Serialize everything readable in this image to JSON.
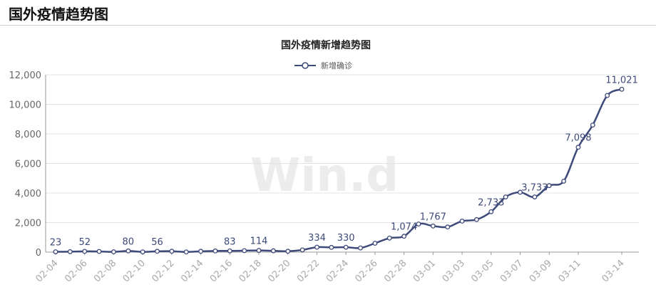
{
  "header": {
    "title": "国外疫情趋势图"
  },
  "watermark": "Win.d",
  "chart_data": {
    "type": "line",
    "title": "国外疫情新增趋势图",
    "legend": {
      "position": "top-center",
      "entries": [
        "新增确诊"
      ]
    },
    "ylim": [
      0,
      12000
    ],
    "yticks": [
      "0",
      "2,000",
      "4,000",
      "6,000",
      "8,000",
      "10,000",
      "12,000"
    ],
    "categories": [
      "02-04",
      "02-05",
      "02-06",
      "02-07",
      "02-08",
      "02-09",
      "02-10",
      "02-11",
      "02-12",
      "02-13",
      "02-14",
      "02-15",
      "02-16",
      "02-17",
      "02-18",
      "02-19",
      "02-20",
      "02-21",
      "02-22",
      "02-23",
      "02-24",
      "02-25",
      "02-26",
      "02-27",
      "02-28",
      "02-29",
      "03-01",
      "03-02",
      "03-03",
      "03-04",
      "03-05",
      "03-06",
      "03-07",
      "03-08",
      "03-09",
      "03-10",
      "03-11",
      "03-12",
      "03-13",
      "03-14"
    ],
    "xtick_labels": [
      "02-04",
      "02-06",
      "02-08",
      "02-10",
      "02-12",
      "02-14",
      "02-16",
      "02-18",
      "02-20",
      "02-22",
      "02-24",
      "02-26",
      "02-28",
      "03-01",
      "03-03",
      "03-05",
      "03-07",
      "03-09",
      "03-11",
      "03-14"
    ],
    "series": [
      {
        "name": "新增确诊",
        "color": "#3d4a7a",
        "values": [
          23,
          30,
          52,
          45,
          20,
          80,
          15,
          56,
          60,
          10,
          56,
          80,
          83,
          100,
          114,
          90,
          60,
          150,
          334,
          320,
          330,
          280,
          600,
          950,
          1074,
          1900,
          1767,
          1700,
          2100,
          2200,
          2733,
          3733,
          4050,
          3733,
          4500,
          4800,
          7098,
          8600,
          10600,
          11021
        ]
      }
    ],
    "data_labels": [
      {
        "index": 0,
        "text": "23"
      },
      {
        "index": 2,
        "text": "52"
      },
      {
        "index": 5,
        "text": "80"
      },
      {
        "index": 7,
        "text": "56"
      },
      {
        "index": 12,
        "text": "83"
      },
      {
        "index": 14,
        "text": "114"
      },
      {
        "index": 18,
        "text": "334"
      },
      {
        "index": 20,
        "text": "330"
      },
      {
        "index": 24,
        "text": "1,074"
      },
      {
        "index": 26,
        "text": "1,767"
      },
      {
        "index": 30,
        "text": "2,733"
      },
      {
        "index": 33,
        "text": "3,733"
      },
      {
        "index": 36,
        "text": "7,098"
      },
      {
        "index": 39,
        "text": "11,021"
      }
    ],
    "grid": true
  }
}
